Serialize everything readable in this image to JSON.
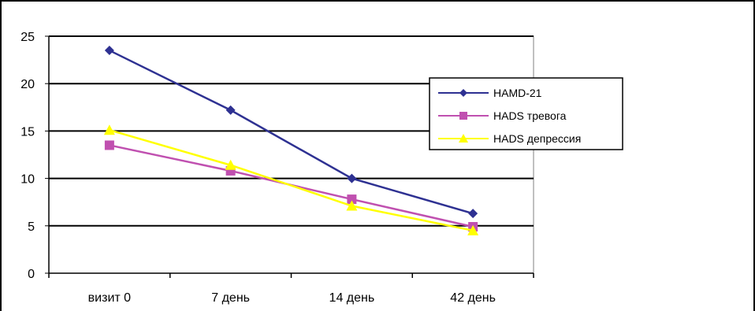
{
  "chart_data": {
    "type": "line",
    "categories": [
      "визит 0",
      "7 день",
      "14 день",
      "42 день"
    ],
    "ylim": [
      0,
      25
    ],
    "yticks": [
      0,
      5,
      10,
      15,
      20,
      25
    ],
    "grid": true,
    "legend_position": "right",
    "series": [
      {
        "name": "HAMD-21",
        "values": [
          23.5,
          17.2,
          10.0,
          6.3
        ],
        "color": "#2e3192",
        "marker": "diamond"
      },
      {
        "name": "HADS тревога",
        "values": [
          13.5,
          10.8,
          7.8,
          4.9
        ],
        "color": "#c050b0",
        "marker": "square"
      },
      {
        "name": "HADS депрессия",
        "values": [
          15.1,
          11.4,
          7.1,
          4.5
        ],
        "color": "#ffff00",
        "marker": "triangle"
      }
    ]
  }
}
